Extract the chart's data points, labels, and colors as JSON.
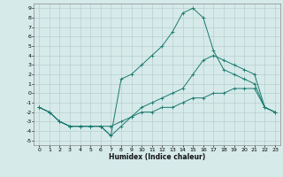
{
  "title": "",
  "xlabel": "Humidex (Indice chaleur)",
  "xlim": [
    -0.5,
    23.5
  ],
  "ylim": [
    -5.5,
    9.5
  ],
  "xticks": [
    0,
    1,
    2,
    3,
    4,
    5,
    6,
    7,
    8,
    9,
    10,
    11,
    12,
    13,
    14,
    15,
    16,
    17,
    18,
    19,
    20,
    21,
    22,
    23
  ],
  "yticks": [
    -5,
    -4,
    -3,
    -2,
    -1,
    0,
    1,
    2,
    3,
    4,
    5,
    6,
    7,
    8,
    9
  ],
  "bg_color": "#d6eaea",
  "grid_color": "#b8d0d0",
  "line_color": "#1a7a6e",
  "line1_x": [
    0,
    1,
    2,
    3,
    4,
    5,
    6,
    7,
    8,
    9,
    10,
    11,
    12,
    13,
    14,
    15,
    16,
    17,
    18,
    19,
    20,
    21,
    22,
    23
  ],
  "line1_y": [
    -1.5,
    -2.0,
    -3.0,
    -3.5,
    -3.5,
    -3.5,
    -3.5,
    -3.5,
    -3.0,
    -2.5,
    -2.0,
    -2.0,
    -1.5,
    -1.5,
    -1.0,
    -0.5,
    -0.5,
    0.0,
    0.0,
    0.5,
    0.5,
    0.5,
    -1.5,
    -2.0
  ],
  "line2_x": [
    0,
    1,
    2,
    3,
    4,
    5,
    6,
    7,
    8,
    9,
    10,
    11,
    12,
    13,
    14,
    15,
    16,
    17,
    18,
    19,
    20,
    21,
    22,
    23
  ],
  "line2_y": [
    -1.5,
    -2.0,
    -3.0,
    -3.5,
    -3.5,
    -3.5,
    -3.5,
    -4.5,
    1.5,
    2.0,
    3.0,
    4.0,
    5.0,
    6.5,
    8.5,
    9.0,
    8.0,
    4.5,
    2.5,
    2.0,
    1.5,
    1.0,
    -1.5,
    -2.0
  ],
  "line3_x": [
    0,
    1,
    2,
    3,
    4,
    5,
    6,
    7,
    8,
    9,
    10,
    11,
    12,
    13,
    14,
    15,
    16,
    17,
    18,
    19,
    20,
    21,
    22,
    23
  ],
  "line3_y": [
    -1.5,
    -2.0,
    -3.0,
    -3.5,
    -3.5,
    -3.5,
    -3.5,
    -4.5,
    -3.5,
    -2.5,
    -1.5,
    -1.0,
    -0.5,
    0.0,
    0.5,
    2.0,
    3.5,
    4.0,
    3.5,
    3.0,
    2.5,
    2.0,
    -1.5,
    -2.0
  ]
}
